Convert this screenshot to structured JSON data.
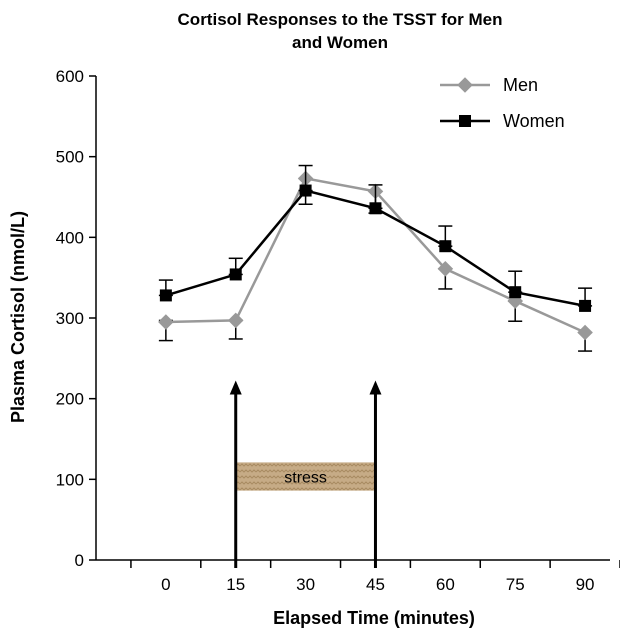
{
  "chart_data": {
    "type": "line",
    "title_line1": "Cortisol Responses to the TSST for Men",
    "title_line2": "and Women",
    "xlabel": "Elapsed Time (minutes)",
    "ylabel": "Plasma Cortisol (nmol/L)",
    "x": [
      0,
      15,
      30,
      45,
      60,
      75,
      90
    ],
    "xlim": [
      -15,
      97.5
    ],
    "ylim": [
      0,
      600
    ],
    "yticks": [
      0,
      100,
      200,
      300,
      400,
      500,
      600
    ],
    "legend_position": "top-right",
    "grid": false,
    "series": [
      {
        "name": "Men",
        "color": "#999999",
        "marker": "diamond",
        "values": [
          295,
          297,
          473,
          457,
          361,
          321,
          282
        ],
        "error_low": [
          272,
          274,
          441,
          430,
          336,
          296,
          259
        ],
        "error_high": [
          297,
          297,
          473,
          457,
          361,
          321,
          282
        ]
      },
      {
        "name": "Women",
        "color": "#000000",
        "marker": "square",
        "values": [
          328,
          354,
          458,
          436,
          389,
          332,
          315
        ],
        "error_low": [
          328,
          354,
          458,
          436,
          389,
          332,
          315
        ],
        "error_high": [
          347,
          374,
          489,
          465,
          414,
          358,
          337
        ]
      }
    ],
    "annotations": {
      "arrows_at_x": [
        15,
        45
      ],
      "arrow_top_y": 220,
      "stress_band": {
        "label": "stress",
        "x_start": 15,
        "x_end": 45,
        "y_low": 86,
        "y_high": 121,
        "color": "#c3a884"
      }
    }
  }
}
